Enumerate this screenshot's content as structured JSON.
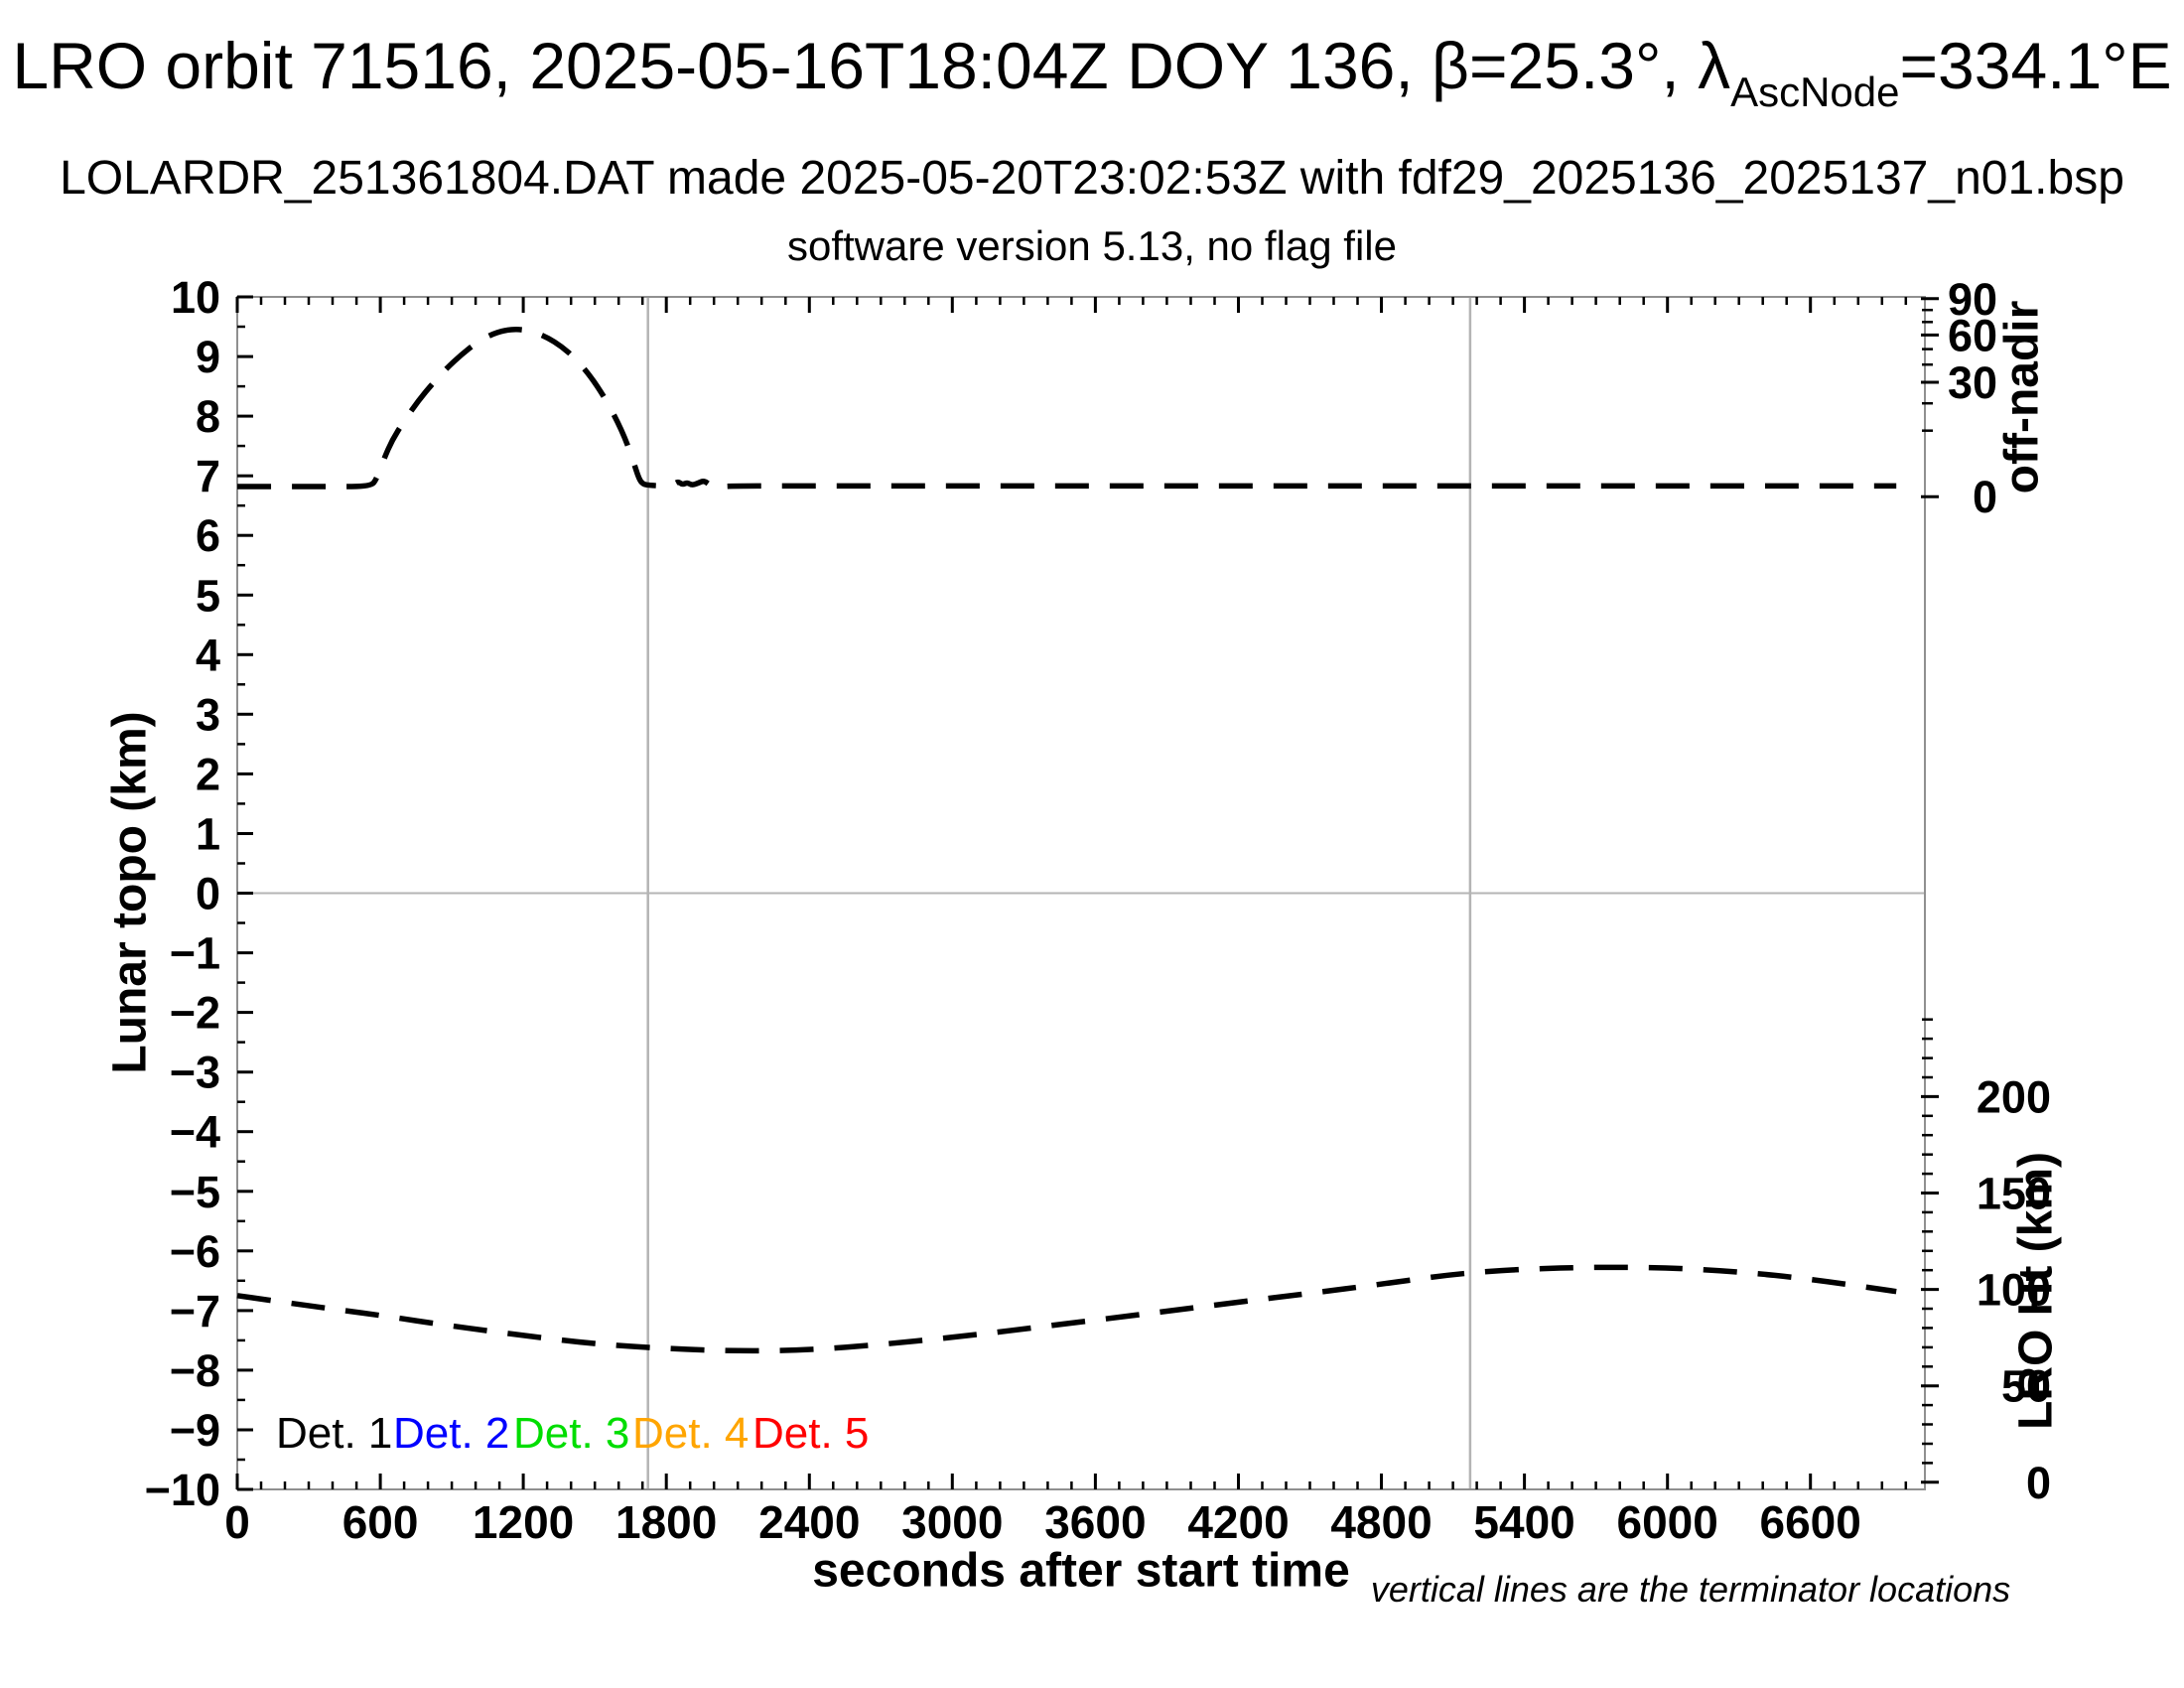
{
  "header": {
    "title_main": "LRO orbit 71516, 2025-05-16T18:04Z DOY 136, β=25.3°, λ",
    "title_sub": "AscNode",
    "title_tail": "=334.1°E",
    "subtitle": "LOLARDR_251361804.DAT made 2025-05-20T23:02:53Z with fdf29_2025136_2025137_n01.bsp",
    "subtitle2": "software version 5.13, no flag file"
  },
  "chart_data": {
    "type": "line",
    "title": "LRO orbit 71516, 2025-05-16T18:04Z DOY 136, β=25.3°, λAscNode=334.1°E",
    "xlabel": "seconds after start time",
    "ylabel_left": "Lunar topo (km)",
    "ylabel_right_top": "off-nadir",
    "ylabel_right_bottom": "LRO Ht (km)",
    "note": "vertical lines are the terminator locations",
    "grid": false,
    "x_axis": {
      "range": [
        0,
        7080
      ],
      "major_tick_step": 600,
      "minor_tick_step": 100,
      "last_labeled_tick": 6600
    },
    "y_axis_left": {
      "range": [
        -10,
        10
      ],
      "major_tick_step": 1,
      "minor_tick_step": 0.5
    },
    "y_axis_right_top": {
      "scale": "sqrt",
      "major_ticks_deg": [
        0,
        30,
        60,
        90
      ],
      "minor_ticks_deg": [
        10,
        20,
        40,
        50,
        70,
        80
      ],
      "topo_at_0deg": 6.65,
      "topo_per_sqrt_deg": 0.35
    },
    "y_axis_right_bottom": {
      "major_ticks_km": [
        0,
        50,
        100,
        150,
        200
      ],
      "minor_tick_step_km": 10,
      "minor_tick_max_km": 250,
      "topo_at_0km": -9.88,
      "topo_per_km": 0.03234
    },
    "terminator_lines_s": [
      1723,
      5172
    ],
    "zero_line_topo": 0,
    "series": [
      {
        "name": "spacecraft off-nadir angle",
        "axis": "right-top",
        "style": "dashed",
        "color": "#000000",
        "points_s_topo": [
          [
            0,
            6.82
          ],
          [
            200,
            6.82
          ],
          [
            400,
            6.82
          ],
          [
            560,
            6.82
          ],
          [
            585,
            6.95
          ],
          [
            615,
            7.28
          ],
          [
            650,
            7.6
          ],
          [
            700,
            7.92
          ],
          [
            760,
            8.26
          ],
          [
            820,
            8.55
          ],
          [
            880,
            8.81
          ],
          [
            940,
            9.03
          ],
          [
            1000,
            9.22
          ],
          [
            1060,
            9.36
          ],
          [
            1120,
            9.44
          ],
          [
            1180,
            9.46
          ],
          [
            1240,
            9.42
          ],
          [
            1300,
            9.32
          ],
          [
            1360,
            9.17
          ],
          [
            1420,
            8.96
          ],
          [
            1480,
            8.68
          ],
          [
            1540,
            8.32
          ],
          [
            1590,
            7.95
          ],
          [
            1630,
            7.6
          ],
          [
            1661,
            7.25
          ],
          [
            1685,
            6.95
          ],
          [
            1702,
            6.86
          ],
          [
            1730,
            6.84
          ],
          [
            1790,
            6.83
          ],
          [
            1824,
            6.83
          ],
          [
            1848,
            6.91
          ],
          [
            1868,
            6.85
          ],
          [
            1888,
            6.89
          ],
          [
            1908,
            6.84
          ],
          [
            1935,
            6.88
          ],
          [
            1958,
            6.92
          ],
          [
            1982,
            6.85
          ],
          [
            2005,
            6.79
          ],
          [
            2025,
            6.81
          ],
          [
            2060,
            6.83
          ],
          [
            2400,
            6.83
          ],
          [
            2800,
            6.83
          ],
          [
            3200,
            6.83
          ],
          [
            3600,
            6.83
          ],
          [
            4000,
            6.83
          ],
          [
            4400,
            6.83
          ],
          [
            4800,
            6.83
          ],
          [
            5200,
            6.83
          ],
          [
            5600,
            6.83
          ],
          [
            6000,
            6.83
          ],
          [
            6400,
            6.83
          ],
          [
            6700,
            6.83
          ],
          [
            6960,
            6.83
          ]
        ]
      },
      {
        "name": "LRO height above surface",
        "axis": "right-bottom",
        "style": "dashed",
        "color": "#000000",
        "points_s_km": [
          [
            0,
            96.8
          ],
          [
            300,
            91.5
          ],
          [
            600,
            86.6
          ],
          [
            900,
            81.0
          ],
          [
            1200,
            76.1
          ],
          [
            1500,
            71.7
          ],
          [
            1800,
            69.3
          ],
          [
            2100,
            68.0
          ],
          [
            2400,
            68.6
          ],
          [
            2700,
            71.4
          ],
          [
            3000,
            75.1
          ],
          [
            3300,
            79.5
          ],
          [
            3600,
            84.1
          ],
          [
            3900,
            88.7
          ],
          [
            4200,
            93.4
          ],
          [
            4500,
            98.0
          ],
          [
            4800,
            102.7
          ],
          [
            5100,
            108.0
          ],
          [
            5400,
            110.6
          ],
          [
            5700,
            111.6
          ],
          [
            6000,
            111.3
          ],
          [
            6300,
            109.2
          ],
          [
            6600,
            105.4
          ],
          [
            6960,
            98.9
          ]
        ]
      }
    ],
    "legend": [
      {
        "label": "Det. 1",
        "color": "#000000"
      },
      {
        "label": "Det. 2",
        "color": "#0000ff"
      },
      {
        "label": "Det. 3",
        "color": "#00dd00"
      },
      {
        "label": "Det. 4",
        "color": "#ffa500"
      },
      {
        "label": "Det. 5",
        "color": "#ff0000"
      }
    ],
    "colors": {
      "frame": "#909090",
      "reference_lines": "#b4b4b4",
      "curves": "#000000",
      "text": "#000000"
    }
  }
}
